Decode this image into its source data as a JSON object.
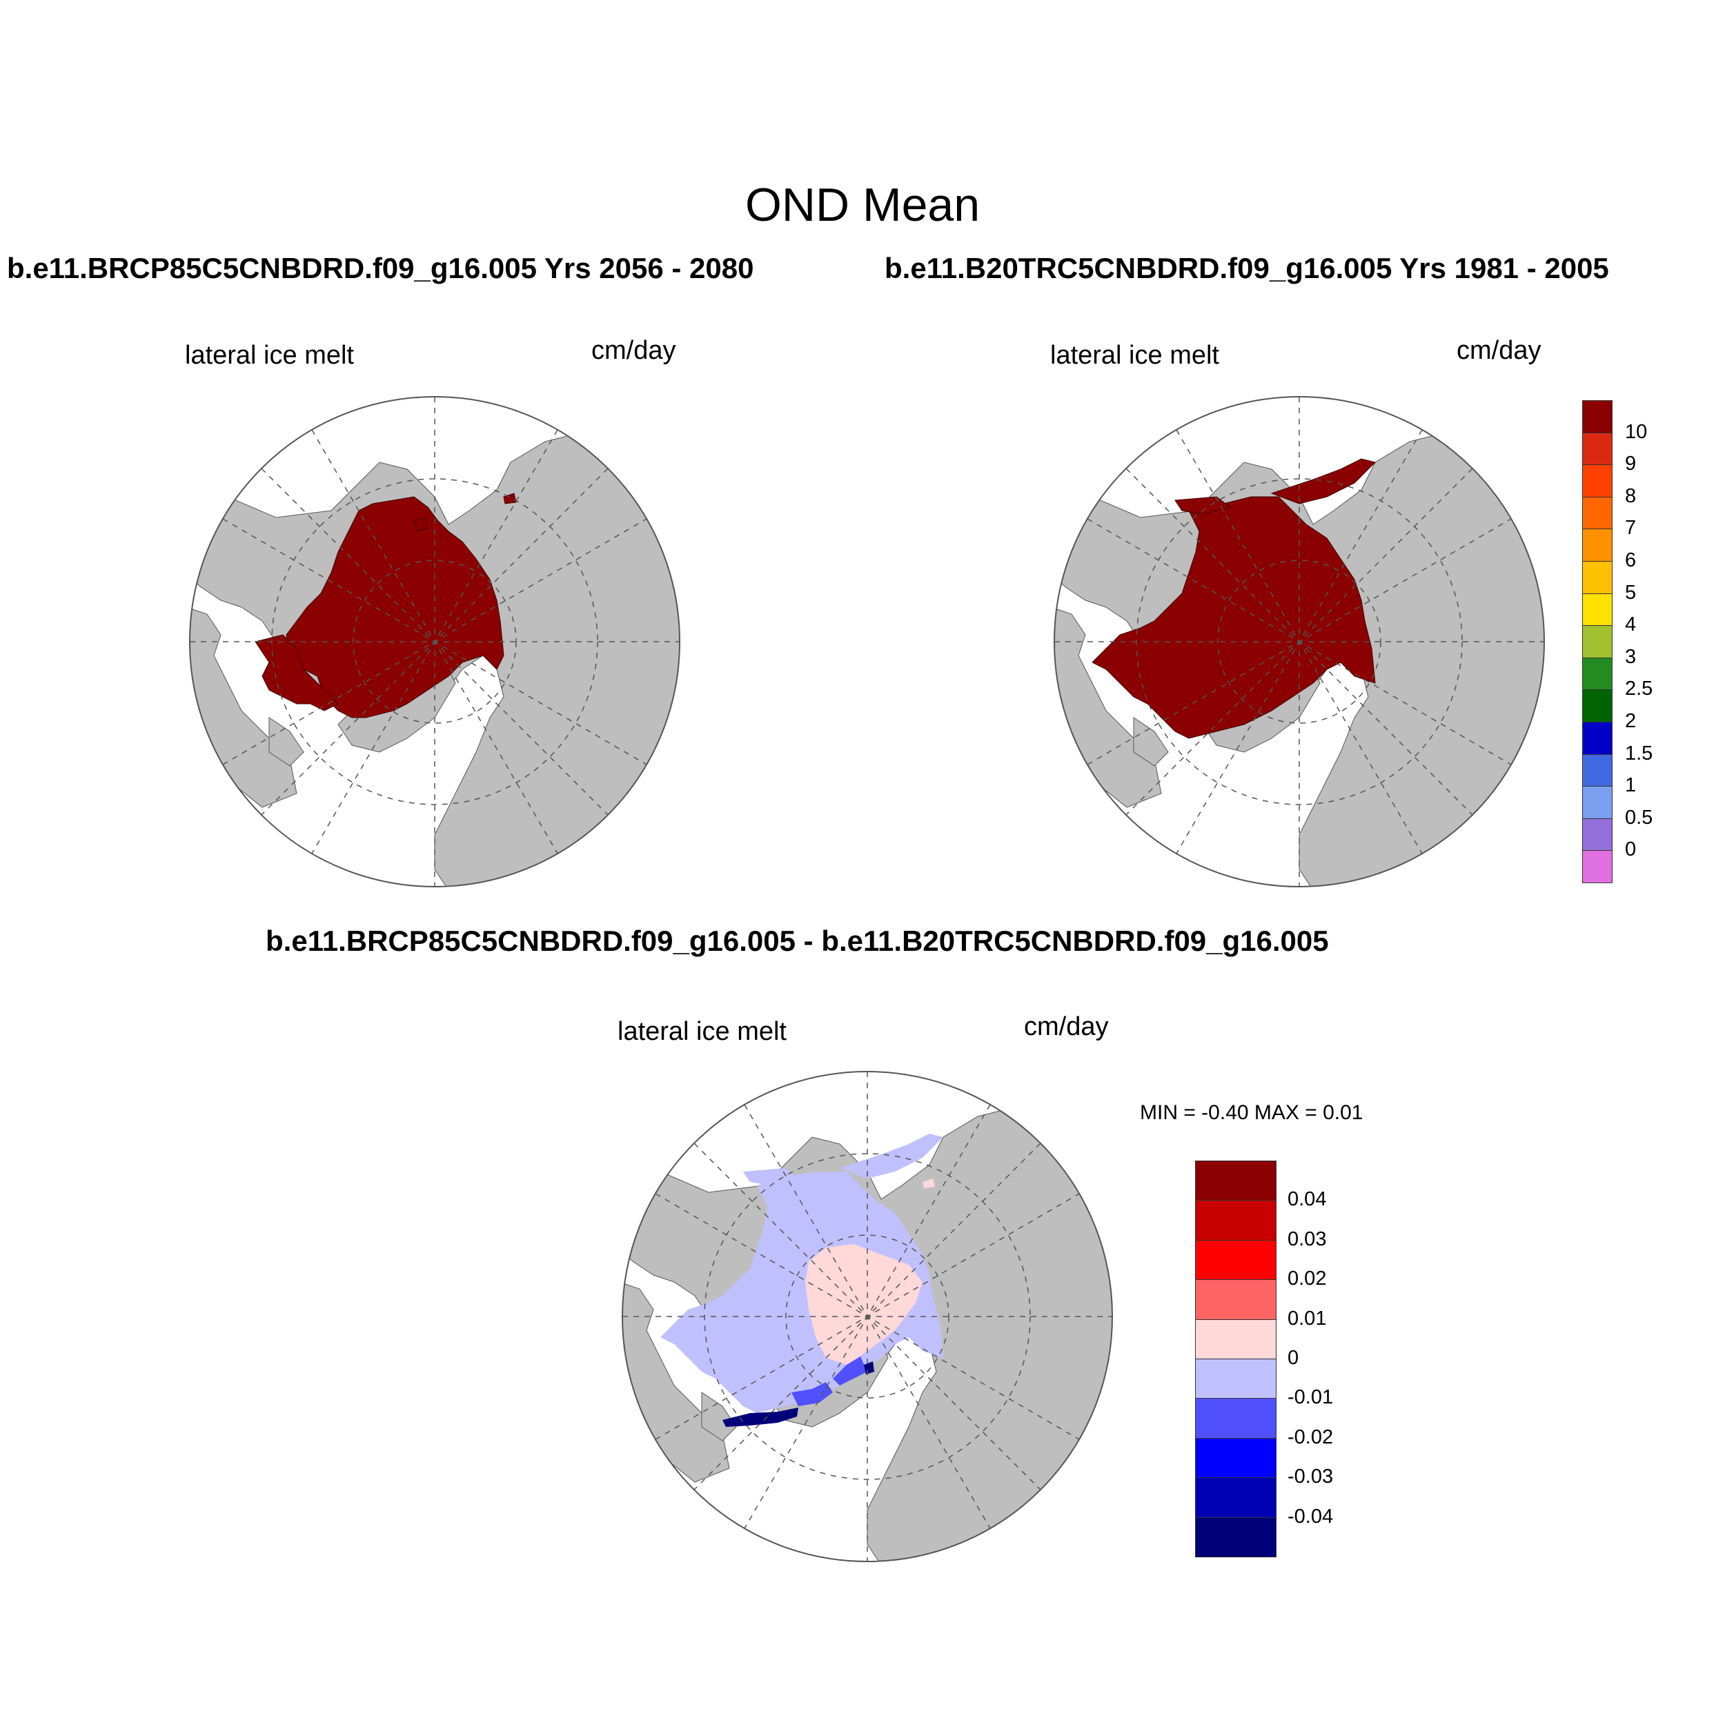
{
  "main_title": "OND Mean",
  "panels": [
    {
      "title": "b.e11.BRCP85C5CNBDRD.f09_g16.005  Yrs 2056 - 2080",
      "left_label": "lateral ice melt",
      "right_label": "cm/day"
    },
    {
      "title": "b.e11.B20TRC5CNBDRD.f09_g16.005  Yrs 1981 - 2005",
      "left_label": "lateral ice melt",
      "right_label": "cm/day"
    },
    {
      "title": "b.e11.BRCP85C5CNBDRD.f09_g16.005 - b.e11.B20TRC5CNBDRD.f09_g16.005",
      "left_label": "lateral ice melt",
      "right_label": "cm/day",
      "min_max": "MIN =  -0.40 MAX =   0.01"
    }
  ],
  "colorbar_main": {
    "labels": [
      "10",
      "9",
      "8",
      "7",
      "6",
      "5",
      "4",
      "3",
      "2.5",
      "2",
      "1.5",
      "1",
      "0.5",
      "0"
    ],
    "colors": [
      "#8b0000",
      "#dc2a12",
      "#ff4000",
      "#ff6600",
      "#ff9000",
      "#ffc000",
      "#ffe000",
      "#a0c030",
      "#228b22",
      "#006400",
      "#0000c8",
      "#4169e1",
      "#7b9ff0",
      "#9370db",
      "#e070e0"
    ]
  },
  "colorbar_diff": {
    "labels": [
      "0.04",
      "0.03",
      "0.02",
      "0.01",
      "0",
      "-0.01",
      "-0.02",
      "-0.03",
      "-0.04"
    ],
    "colors": [
      "#8b0000",
      "#c80000",
      "#ff0000",
      "#ff6464",
      "#ffd8d8",
      "#c0c0ff",
      "#5050ff",
      "#0000ff",
      "#0000b4",
      "#000078"
    ]
  },
  "map_colors": {
    "land": "#bebebe",
    "ocean": "#ffffff",
    "ice_melt": "#8b0000",
    "diff_light_blue": "#c0c0ff",
    "diff_light_pink": "#ffd8d8",
    "diff_blue": "#5050ff",
    "diff_dark_blue": "#000078"
  }
}
